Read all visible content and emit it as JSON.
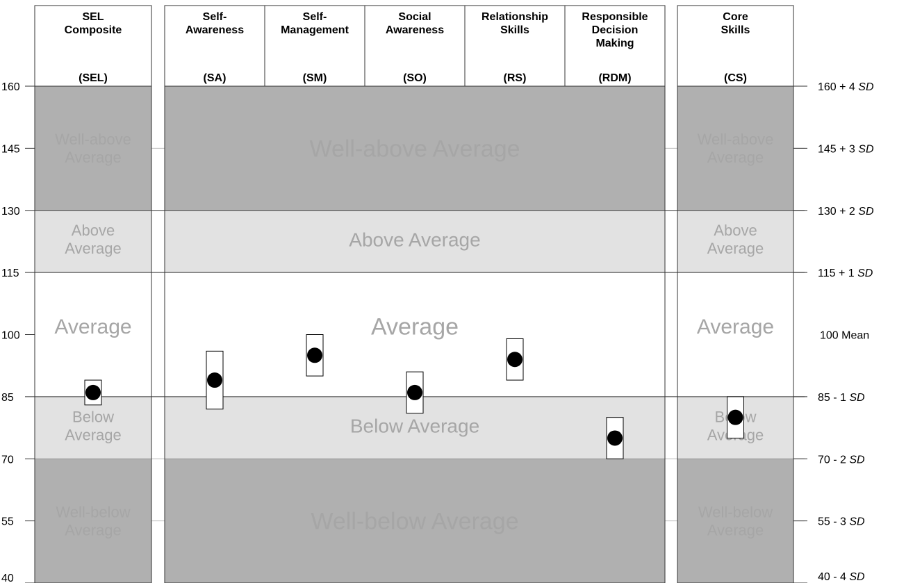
{
  "chart_data": {
    "type": "scatter",
    "title": "",
    "ylim": [
      40,
      160
    ],
    "y_ticks_left": [
      "160",
      "145",
      "130",
      "115",
      "100",
      "85",
      "70",
      "55",
      "40"
    ],
    "y_tick_values": [
      160,
      145,
      130,
      115,
      100,
      85,
      70,
      55,
      40
    ],
    "y_ticks_right": [
      {
        "value": 160,
        "main": "160 + 4 ",
        "sd": "SD"
      },
      {
        "value": 145,
        "main": "145 + 3 ",
        "sd": "SD"
      },
      {
        "value": 130,
        "main": "130 + 2 ",
        "sd": "SD"
      },
      {
        "value": 115,
        "main": "115 + 1 ",
        "sd": "SD"
      },
      {
        "value": 100,
        "main": "100 Mean",
        "sd": ""
      },
      {
        "value": 85,
        "main": "85 - 1 ",
        "sd": "SD"
      },
      {
        "value": 70,
        "main": "70 - 2 ",
        "sd": "SD"
      },
      {
        "value": 55,
        "main": "55 - 3 ",
        "sd": "SD"
      },
      {
        "value": 40,
        "main": "40 - 4 ",
        "sd": "SD"
      }
    ],
    "bands": [
      {
        "from": 130,
        "to": 160,
        "color": "#b0b0b0",
        "panel_label": [
          "Well-above",
          "Average"
        ],
        "wide_label": "Well-above Average",
        "wide_value": 145
      },
      {
        "from": 115,
        "to": 130,
        "color": "#e2e2e2",
        "panel_label": [
          "Above",
          "Average"
        ],
        "wide_label": "Above Average",
        "wide_value": 123
      },
      {
        "from": 85,
        "to": 115,
        "color": "#ffffff",
        "panel_label": [
          "Average"
        ],
        "wide_label": "Average",
        "wide_value": 102
      },
      {
        "from": 70,
        "to": 85,
        "color": "#e2e2e2",
        "panel_label": [
          "Below",
          "Average"
        ],
        "wide_label": "Below Average",
        "wide_value": 78
      },
      {
        "from": 40,
        "to": 70,
        "color": "#b0b0b0",
        "panel_label": [
          "Well-below",
          "Average"
        ],
        "wide_label": "Well-below Average",
        "wide_value": 55
      }
    ],
    "panels": [
      {
        "name": "composite",
        "columns": [
          {
            "header": [
              "SEL",
              "Composite"
            ],
            "abbr": "(SEL)",
            "score": 86,
            "ci": [
              83,
              89
            ]
          }
        ]
      },
      {
        "name": "competencies",
        "columns": [
          {
            "header": [
              "Self-",
              "Awareness"
            ],
            "abbr": "(SA)",
            "score": 89,
            "ci": [
              82,
              96
            ]
          },
          {
            "header": [
              "Self-",
              "Management"
            ],
            "abbr": "(SM)",
            "score": 95,
            "ci": [
              90,
              100
            ]
          },
          {
            "header": [
              "Social",
              "Awareness"
            ],
            "abbr": "(SO)",
            "score": 86,
            "ci": [
              81,
              91
            ]
          },
          {
            "header": [
              "Relationship",
              "Skills"
            ],
            "abbr": "(RS)",
            "score": 94,
            "ci": [
              89,
              99
            ]
          },
          {
            "header": [
              "Responsible",
              "Decision",
              "Making"
            ],
            "abbr": "(RDM)",
            "score": 75,
            "ci": [
              70,
              80
            ]
          }
        ]
      },
      {
        "name": "core",
        "columns": [
          {
            "header": [
              "Core",
              "Skills"
            ],
            "abbr": "(CS)",
            "score": 80,
            "ci": [
              75,
              85
            ]
          }
        ]
      }
    ]
  }
}
